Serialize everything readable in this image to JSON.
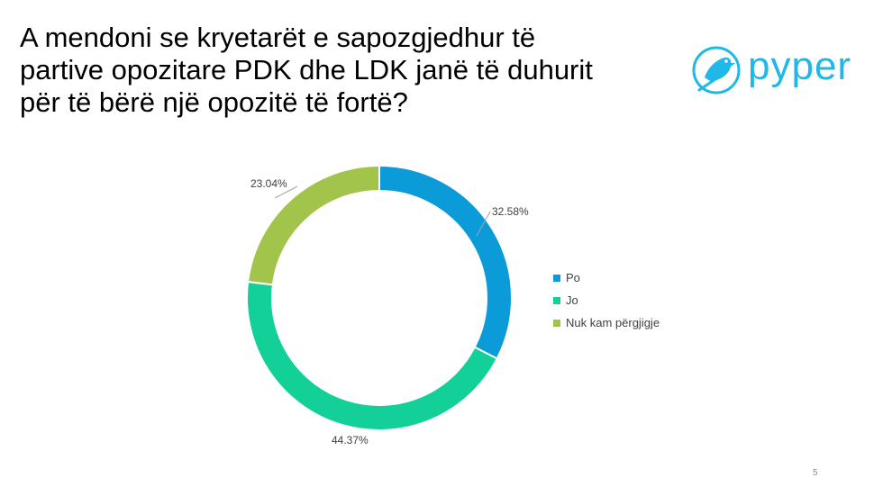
{
  "slide": {
    "title": "A mendoni se kryetarët e sapozgjedhur të\npartive opozitare PDK dhe LDK janë të duhurit\npër të bërë një opozitë të fortë?",
    "page_number": "5"
  },
  "logo": {
    "text": "pyper",
    "icon": "bird-icon",
    "color": "#1fb8e8"
  },
  "chart_data": {
    "type": "pie",
    "variant": "doughnut",
    "categories": [
      "Po",
      "Jo",
      "Nuk kam përgjigje"
    ],
    "values": [
      32.58,
      44.37,
      23.04
    ],
    "value_labels": [
      "32.58%",
      "44.37%",
      "23.04%"
    ],
    "colors": [
      "#0c9bd9",
      "#12d097",
      "#a3c44a"
    ],
    "legend_position": "right",
    "title": ""
  }
}
